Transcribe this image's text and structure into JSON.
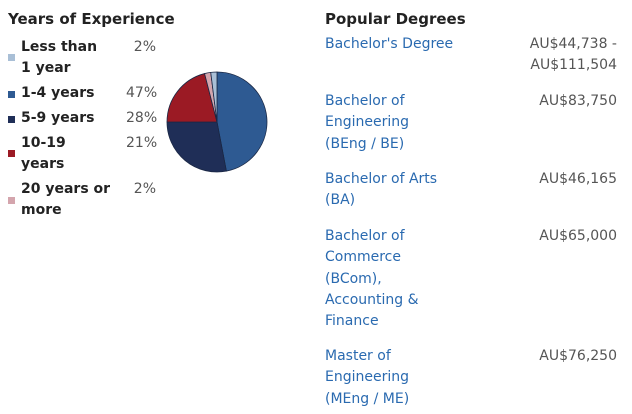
{
  "experience": {
    "title": "Years of Experience"
  },
  "degrees": {
    "title": "Popular Degrees",
    "items": [
      {
        "name": "Bachelor's Degree",
        "salary_line1": "AU$44,738 -",
        "salary_line2": "AU$111,504"
      },
      {
        "name": "Bachelor of Engineering (BEng / BE)",
        "salary_line1": "AU$83,750",
        "salary_line2": ""
      },
      {
        "name": "Bachelor of Arts (BA)",
        "salary_line1": "AU$46,165",
        "salary_line2": ""
      },
      {
        "name": "Bachelor of Commerce (BCom), Accounting & Finance",
        "salary_line1": "AU$65,000",
        "salary_line2": ""
      },
      {
        "name": "Master of Engineering (MEng / ME)",
        "salary_line1": "AU$76,250",
        "salary_line2": ""
      }
    ]
  },
  "chart_data": {
    "type": "pie",
    "title": "Years of Experience",
    "categories": [
      "Less than 1 year",
      "1-4 years",
      "5-9 years",
      "10-19 years",
      "20 years or more"
    ],
    "values": [
      2,
      47,
      28,
      21,
      2
    ],
    "value_labels": [
      "2%",
      "47%",
      "28%",
      "21%",
      "2%"
    ],
    "colors": [
      "#a9bfd6",
      "#2e5a92",
      "#1f2e57",
      "#9b1a24",
      "#d4a5ad"
    ],
    "legend_position": "left"
  }
}
